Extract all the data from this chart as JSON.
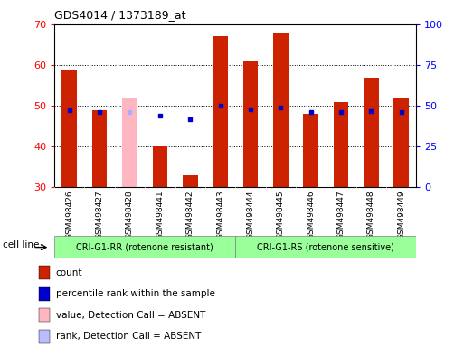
{
  "title": "GDS4014 / 1373189_at",
  "samples": [
    "GSM498426",
    "GSM498427",
    "GSM498428",
    "GSM498441",
    "GSM498442",
    "GSM498443",
    "GSM498444",
    "GSM498445",
    "GSM498446",
    "GSM498447",
    "GSM498448",
    "GSM498449"
  ],
  "count_values": [
    59,
    49,
    52,
    40,
    33,
    67,
    61,
    68,
    48,
    51,
    57,
    52
  ],
  "rank_values": [
    47.5,
    46,
    null,
    null,
    null,
    50,
    48,
    49,
    46,
    46,
    47,
    46
  ],
  "absent_count": [
    null,
    null,
    52,
    null,
    null,
    null,
    null,
    null,
    null,
    null,
    null,
    null
  ],
  "absent_rank": [
    null,
    null,
    46,
    null,
    null,
    null,
    null,
    null,
    null,
    null,
    null,
    null
  ],
  "floating_rank": [
    null,
    null,
    null,
    44,
    42,
    null,
    null,
    null,
    null,
    null,
    null,
    null
  ],
  "ylim": [
    30,
    70
  ],
  "yticks": [
    30,
    40,
    50,
    60,
    70
  ],
  "y2lim": [
    0,
    100
  ],
  "y2ticks": [
    0,
    25,
    50,
    75,
    100
  ],
  "group1_label": "CRI-G1-RR (rotenone resistant)",
  "group1_samples": [
    0,
    1,
    2,
    3,
    4,
    5
  ],
  "group2_label": "CRI-G1-RS (rotenone sensitive)",
  "group2_samples": [
    6,
    7,
    8,
    9,
    10,
    11
  ],
  "group_color": "#99FF99",
  "cell_line_label": "cell line",
  "bar_color": "#CC2200",
  "absent_bar_color": "#FFB6C1",
  "rank_color": "#0000CC",
  "absent_rank_color": "#AAAAFF",
  "tick_bg_color": "#CCCCCC",
  "plot_bg": "#FFFFFF",
  "legend_items": [
    {
      "color": "#CC2200",
      "label": "count"
    },
    {
      "color": "#0000CC",
      "label": "percentile rank within the sample"
    },
    {
      "color": "#FFB6C1",
      "label": "value, Detection Call = ABSENT"
    },
    {
      "color": "#BBBBFF",
      "label": "rank, Detection Call = ABSENT"
    }
  ]
}
